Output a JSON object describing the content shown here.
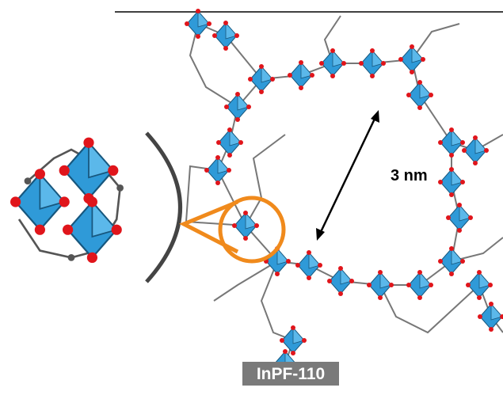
{
  "figure": {
    "scale_label": "3 nm",
    "material_label": "InPF-110"
  }
}
